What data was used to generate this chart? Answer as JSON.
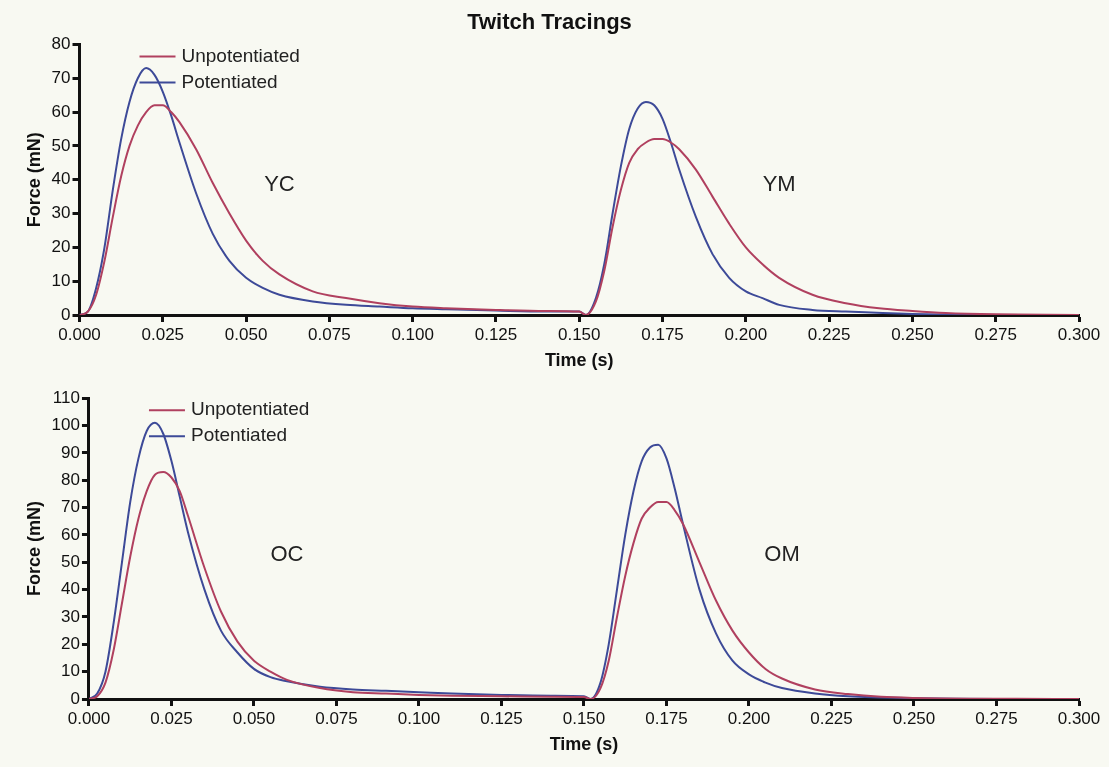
{
  "chart_data": [
    {
      "type": "line",
      "title": "Twitch Tracings",
      "xlabel": "Time (s)",
      "ylabel": "Force (mN)",
      "xlim": [
        0,
        0.3
      ],
      "ylim": [
        0,
        80
      ],
      "xticks": [
        {
          "value": 0,
          "label": "0.000"
        },
        {
          "value": 0.025,
          "label": "0.025"
        },
        {
          "value": 0.05,
          "label": "0.050"
        },
        {
          "value": 0.075,
          "label": "0.075"
        },
        {
          "value": 0.1,
          "label": "0.100"
        },
        {
          "value": 0.125,
          "label": "0.125"
        },
        {
          "value": 0.15,
          "label": "0.150"
        },
        {
          "value": 0.175,
          "label": "0.175"
        },
        {
          "value": 0.2,
          "label": "0.200"
        },
        {
          "value": 0.225,
          "label": "0.225"
        },
        {
          "value": 0.25,
          "label": "0.250"
        },
        {
          "value": 0.275,
          "label": "0.275"
        },
        {
          "value": 0.3,
          "label": "0.300"
        }
      ],
      "yticks": [
        0,
        10,
        20,
        30,
        40,
        50,
        60,
        70,
        80
      ],
      "grid": false,
      "legend": "top left",
      "marker": "none",
      "line_style": "solid",
      "annotations": [
        "YC",
        "YM"
      ],
      "series": [
        {
          "name": "Unpotentiated",
          "color": "#b0405f",
          "x": [
            0,
            0.0025,
            0.005,
            0.0075,
            0.01,
            0.0125,
            0.015,
            0.0175,
            0.02,
            0.0225,
            0.025,
            0.0275,
            0.03,
            0.035,
            0.04,
            0.045,
            0.05,
            0.055,
            0.06,
            0.07,
            0.08,
            0.09,
            0.1,
            0.11,
            0.125,
            0.14,
            0.15,
            0.152,
            0.155,
            0.1575,
            0.16,
            0.1625,
            0.165,
            0.1675,
            0.17,
            0.1725,
            0.175,
            0.1775,
            0.18,
            0.185,
            0.19,
            0.195,
            0.2,
            0.205,
            0.21,
            0.22,
            0.23,
            0.24,
            0.25,
            0.26,
            0.275,
            0.3
          ],
          "values": [
            0,
            1,
            6,
            16,
            29,
            41,
            50,
            56,
            60,
            62,
            62,
            60,
            57,
            49,
            39,
            30,
            22,
            16,
            12,
            7,
            5,
            3.5,
            2.5,
            2,
            1.5,
            1.2,
            1,
            0,
            4,
            13,
            26,
            37,
            45,
            49,
            51,
            52,
            52,
            51,
            49,
            43,
            35,
            27,
            20,
            15,
            11,
            6,
            3.5,
            2,
            1.2,
            0.6,
            0.2,
            0
          ]
        },
        {
          "name": "Potentiated",
          "color": "#3d4a98",
          "x": [
            0,
            0.0025,
            0.005,
            0.0075,
            0.01,
            0.0125,
            0.015,
            0.0175,
            0.02,
            0.0225,
            0.025,
            0.0275,
            0.03,
            0.035,
            0.04,
            0.045,
            0.05,
            0.055,
            0.06,
            0.07,
            0.08,
            0.09,
            0.1,
            0.11,
            0.125,
            0.14,
            0.15,
            0.152,
            0.155,
            0.1575,
            0.16,
            0.1625,
            0.165,
            0.1675,
            0.17,
            0.1725,
            0.175,
            0.1775,
            0.18,
            0.185,
            0.19,
            0.195,
            0.2,
            0.205,
            0.21,
            0.22,
            0.23,
            0.25,
            0.275,
            0.3
          ],
          "values": [
            0,
            1,
            8,
            20,
            37,
            52,
            63,
            70,
            73,
            71,
            66,
            59,
            51,
            36,
            24,
            16,
            11,
            8,
            6,
            4,
            3,
            2.5,
            2,
            1.7,
            1.3,
            1,
            1,
            0,
            5,
            15,
            30,
            44,
            55,
            61,
            63,
            62,
            58,
            51,
            43,
            29,
            18,
            11,
            7,
            5,
            3,
            1.5,
            1,
            0.3,
            0,
            0
          ]
        }
      ]
    },
    {
      "type": "line",
      "xlabel": "Time (s)",
      "ylabel": "Force (mN)",
      "xlim": [
        0,
        0.3
      ],
      "ylim": [
        0,
        110
      ],
      "xticks": [
        {
          "value": 0,
          "label": "0.000"
        },
        {
          "value": 0.025,
          "label": "0.025"
        },
        {
          "value": 0.05,
          "label": "0.050"
        },
        {
          "value": 0.075,
          "label": "0.075"
        },
        {
          "value": 0.1,
          "label": "0.100"
        },
        {
          "value": 0.125,
          "label": "0.125"
        },
        {
          "value": 0.15,
          "label": "0.150"
        },
        {
          "value": 0.175,
          "label": "0.175"
        },
        {
          "value": 0.2,
          "label": "0.200"
        },
        {
          "value": 0.225,
          "label": "0.225"
        },
        {
          "value": 0.25,
          "label": "0.250"
        },
        {
          "value": 0.275,
          "label": "0.275"
        },
        {
          "value": 0.3,
          "label": "0.300"
        }
      ],
      "yticks": [
        0,
        10,
        20,
        30,
        40,
        50,
        60,
        70,
        80,
        90,
        100,
        110
      ],
      "grid": false,
      "legend": "top left",
      "marker": "none",
      "line_style": "solid",
      "annotations": [
        "OC",
        "OM"
      ],
      "series": [
        {
          "name": "Unpotentiated",
          "color": "#b0405f",
          "x": [
            0,
            0.0025,
            0.005,
            0.0075,
            0.01,
            0.0125,
            0.015,
            0.0175,
            0.02,
            0.0225,
            0.025,
            0.0275,
            0.03,
            0.035,
            0.04,
            0.045,
            0.05,
            0.055,
            0.06,
            0.07,
            0.08,
            0.09,
            0.1,
            0.11,
            0.125,
            0.14,
            0.15,
            0.152,
            0.155,
            0.1575,
            0.16,
            0.1625,
            0.165,
            0.1675,
            0.17,
            0.1725,
            0.175,
            0.1775,
            0.18,
            0.185,
            0.19,
            0.195,
            0.2,
            0.205,
            0.21,
            0.22,
            0.23,
            0.24,
            0.25,
            0.275,
            0.3
          ],
          "values": [
            0,
            1,
            6,
            18,
            35,
            52,
            66,
            76,
            82,
            83,
            81,
            76,
            67,
            48,
            32,
            21,
            14,
            10,
            7,
            4,
            2.5,
            2,
            1.5,
            1.2,
            1,
            0.8,
            0.7,
            0,
            4,
            14,
            30,
            45,
            57,
            66,
            70,
            72,
            72,
            69,
            64,
            50,
            36,
            25,
            17,
            11,
            7.5,
            3.5,
            1.8,
            0.8,
            0.4,
            0.1,
            0
          ]
        },
        {
          "name": "Potentiated",
          "color": "#3d4a98",
          "x": [
            0,
            0.0025,
            0.005,
            0.0075,
            0.01,
            0.0125,
            0.015,
            0.0175,
            0.02,
            0.0225,
            0.025,
            0.0275,
            0.03,
            0.035,
            0.04,
            0.045,
            0.05,
            0.055,
            0.06,
            0.07,
            0.08,
            0.09,
            0.1,
            0.11,
            0.125,
            0.14,
            0.15,
            0.152,
            0.155,
            0.1575,
            0.16,
            0.1625,
            0.165,
            0.1675,
            0.17,
            0.1725,
            0.175,
            0.1775,
            0.18,
            0.185,
            0.19,
            0.195,
            0.2,
            0.205,
            0.21,
            0.22,
            0.23,
            0.25,
            0.275,
            0.3
          ],
          "values": [
            0,
            2,
            10,
            28,
            50,
            72,
            88,
            98,
            101,
            97,
            87,
            74,
            61,
            40,
            25,
            17,
            11,
            8,
            6.5,
            4.5,
            3.5,
            3,
            2.5,
            2,
            1.5,
            1.2,
            1,
            0,
            6,
            20,
            40,
            60,
            76,
            87,
            92,
            93,
            88,
            77,
            64,
            40,
            24,
            14,
            9,
            6,
            4,
            2,
            1,
            0.3,
            0,
            0
          ]
        }
      ]
    }
  ]
}
